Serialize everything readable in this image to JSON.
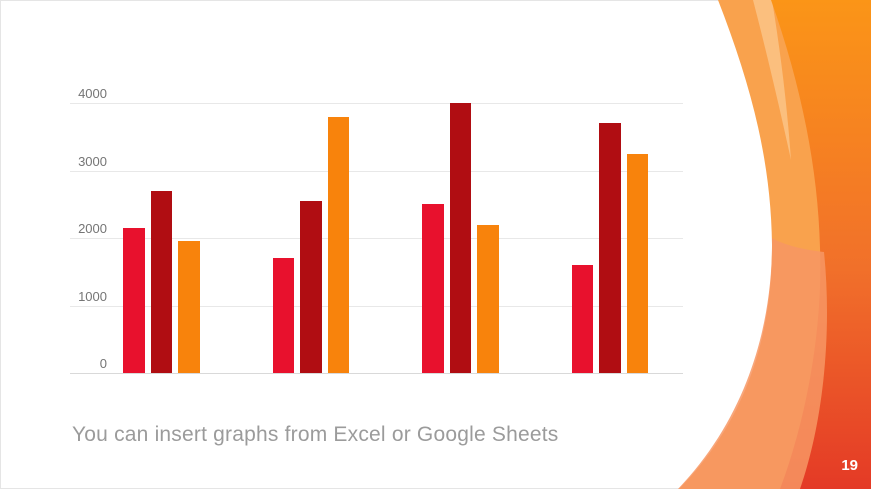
{
  "slide": {
    "caption": "You can insert graphs from Excel or Google Sheets",
    "page_number": "19"
  },
  "chart_data": {
    "type": "bar",
    "title": "",
    "xlabel": "",
    "ylabel": "",
    "categories": [
      "",
      "",
      "",
      ""
    ],
    "series": [
      {
        "name": "red",
        "color": "#e8112d",
        "values": [
          2150,
          1700,
          2500,
          1600
        ]
      },
      {
        "name": "dark-red",
        "color": "#b00d12",
        "values": [
          2700,
          2550,
          4000,
          3700
        ]
      },
      {
        "name": "orange",
        "color": "#f8830c",
        "values": [
          1950,
          3800,
          2200,
          3250
        ]
      }
    ],
    "ylim": [
      0,
      4000
    ],
    "ytick_step": 1000,
    "ytick_labels": [
      "0",
      "1000",
      "2000",
      "3000",
      "4000"
    ],
    "grid": true,
    "legend": "none",
    "gridline_color": "#e8e8e8",
    "axis_label_color": "#757575"
  },
  "decoration": {
    "wave_mid_orange": "#f9a24d",
    "wave_light_wedge": "#fbbf7e",
    "wave_gradient_top": "#fb9517",
    "wave_gradient_bottom": "#e43a26",
    "wave_salmon": "#f79764"
  }
}
